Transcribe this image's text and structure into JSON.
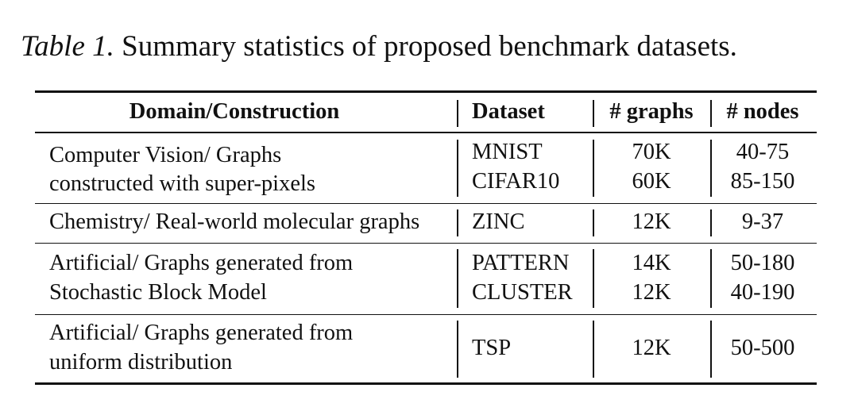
{
  "caption": {
    "label": "Table 1.",
    "text": "Summary statistics of proposed benchmark datasets."
  },
  "table": {
    "headers": {
      "domain": "Domain/Construction",
      "dataset": "Dataset",
      "graphs": "# graphs",
      "nodes": "# nodes"
    },
    "groups": [
      {
        "domain": [
          "Computer Vision/ Graphs",
          "constructed with super-pixels"
        ],
        "rows": [
          {
            "dataset": "MNIST",
            "graphs": "70K",
            "nodes": "40-75"
          },
          {
            "dataset": "CIFAR10",
            "graphs": "60K",
            "nodes": "85-150"
          }
        ]
      },
      {
        "domain": [
          "Chemistry/ Real-world molecular graphs"
        ],
        "rows": [
          {
            "dataset": "ZINC",
            "graphs": "12K",
            "nodes": "9-37"
          }
        ]
      },
      {
        "domain": [
          "Artificial/ Graphs generated from",
          "Stochastic Block Model"
        ],
        "rows": [
          {
            "dataset": "PATTERN",
            "graphs": "14K",
            "nodes": "50-180"
          },
          {
            "dataset": "CLUSTER",
            "graphs": "12K",
            "nodes": "40-190"
          }
        ]
      },
      {
        "domain": [
          "Artificial/ Graphs generated from",
          "uniform distribution"
        ],
        "rows": [
          {
            "dataset": "TSP",
            "graphs": "12K",
            "nodes": "50-500"
          }
        ]
      }
    ]
  }
}
